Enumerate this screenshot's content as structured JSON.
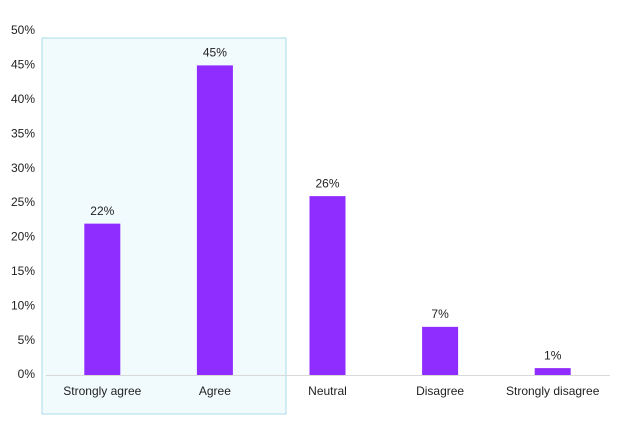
{
  "chart_data": {
    "type": "bar",
    "categories": [
      "Strongly agree",
      "Agree",
      "Neutral",
      "Disagree",
      "Strongly disagree"
    ],
    "values": [
      22,
      45,
      26,
      7,
      1
    ],
    "value_labels": [
      "22%",
      "45%",
      "26%",
      "7%",
      "1%"
    ],
    "color": "#8f2cff",
    "ylim": [
      0,
      50
    ],
    "yticks": [
      {
        "value": 0,
        "label": "0%"
      },
      {
        "value": 5,
        "label": "5%"
      },
      {
        "value": 10,
        "label": "10%"
      },
      {
        "value": 15,
        "label": "15%"
      },
      {
        "value": 20,
        "label": "20%"
      },
      {
        "value": 25,
        "label": "25%"
      },
      {
        "value": 30,
        "label": "30%"
      },
      {
        "value": 35,
        "label": "35%"
      },
      {
        "value": 40,
        "label": "40%"
      },
      {
        "value": 45,
        "label": "45%"
      },
      {
        "value": 50,
        "label": "50%"
      }
    ],
    "grid": false
  }
}
